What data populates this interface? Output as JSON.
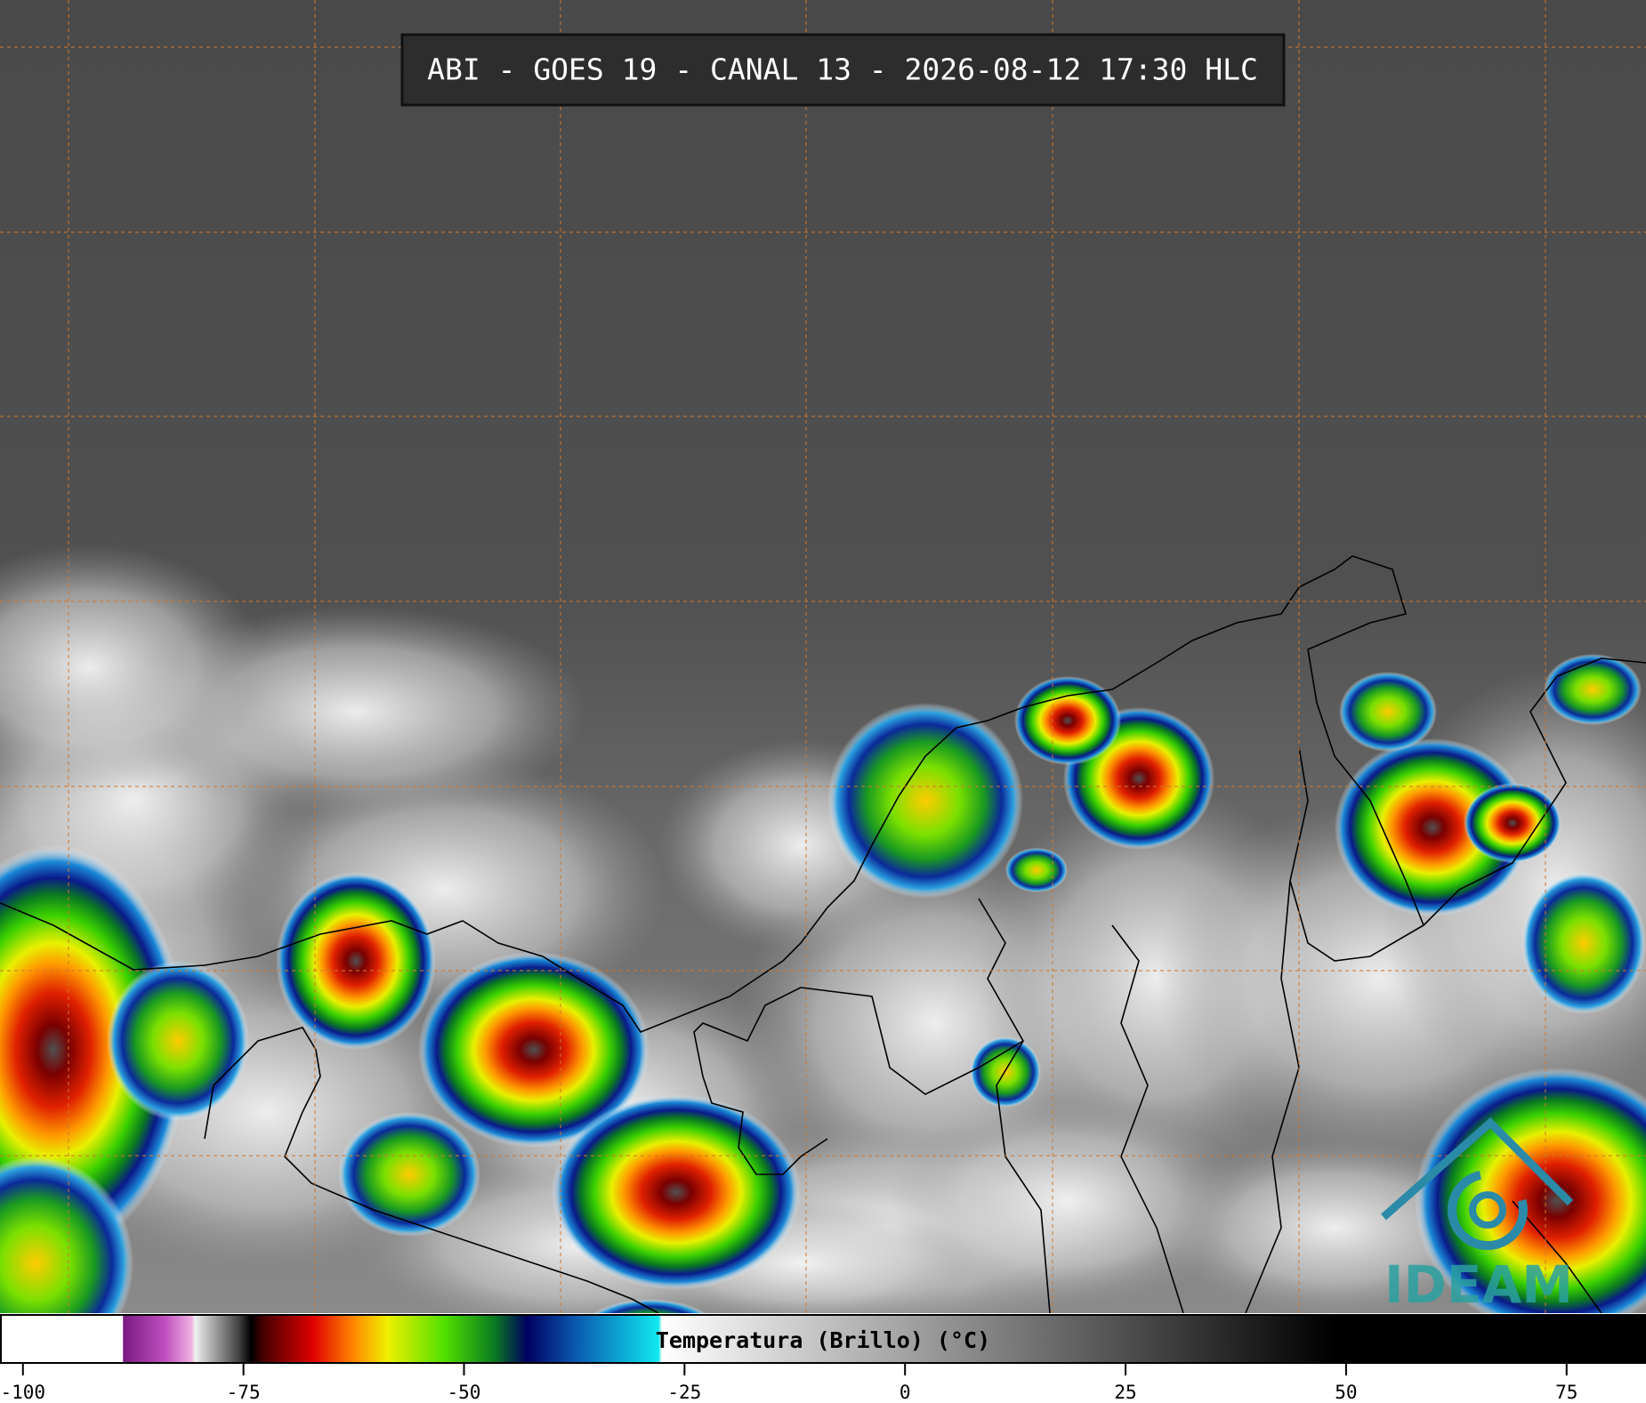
{
  "header": {
    "title": "ABI - GOES 19 - CANAL 13 - 2026-08-12 17:30 HLC"
  },
  "colorbar": {
    "label": "Temperatura (Brillo) (°C)",
    "lim": [
      -102.6,
      84
    ],
    "ticks": [
      -100,
      -75,
      -50,
      -25,
      0,
      25,
      50,
      75
    ]
  },
  "logo": {
    "text": "IDEAM"
  }
}
